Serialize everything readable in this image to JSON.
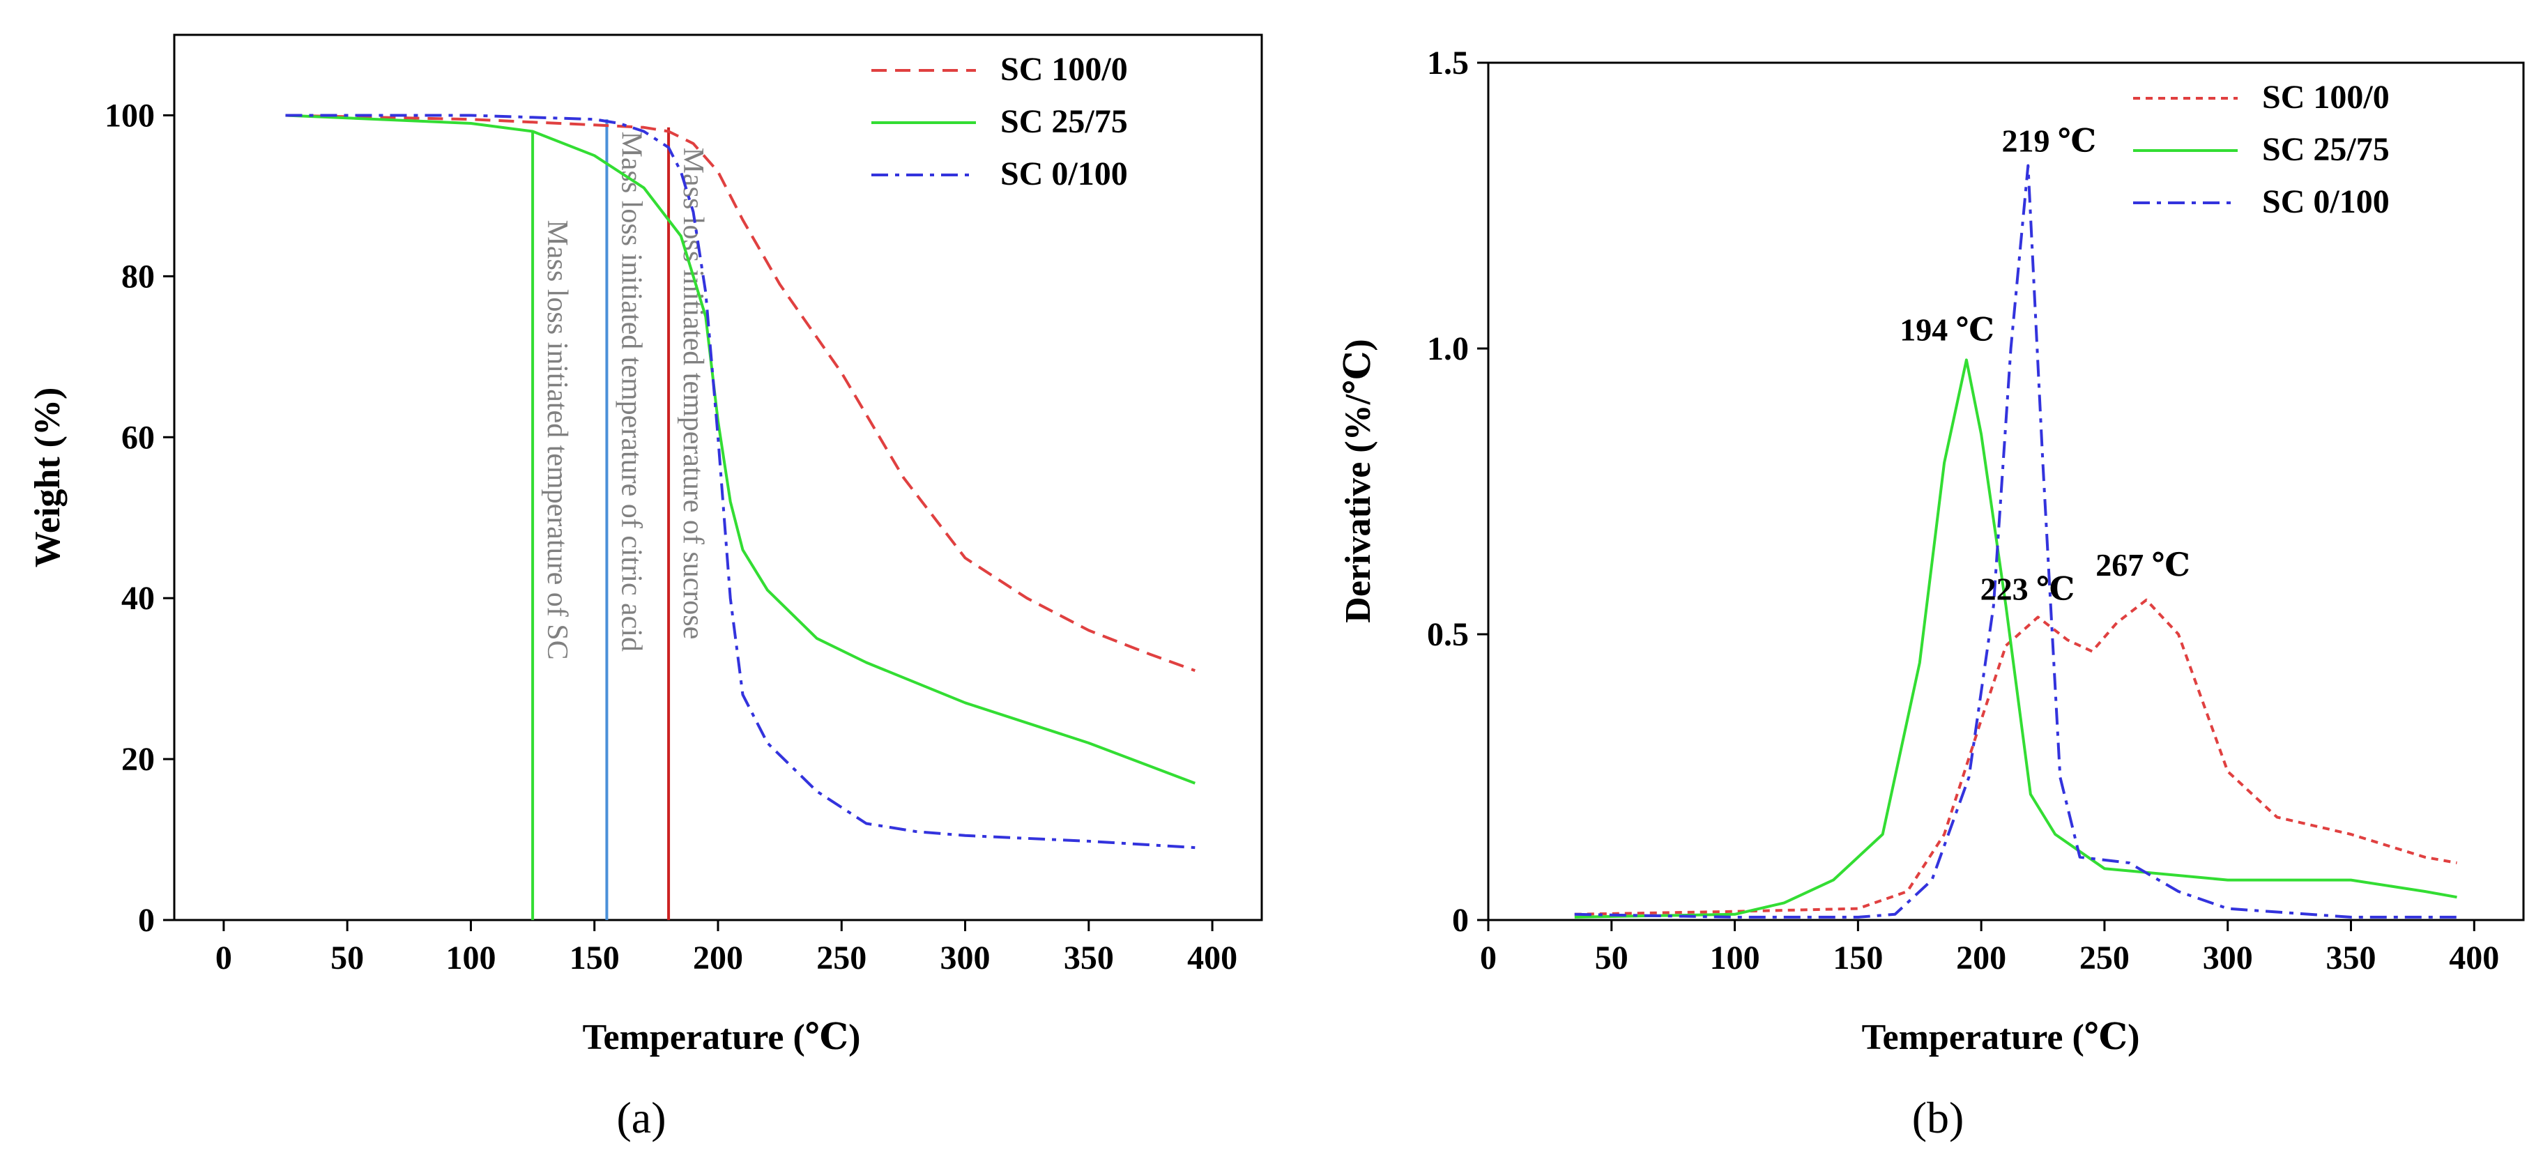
{
  "colors": {
    "sc100": "#e04040",
    "sc25": "#33dd33",
    "sc0": "#3333dd",
    "citric_line": "#4a90d9",
    "sucrose_line": "#cc2222",
    "sc_line": "#33dd33",
    "annotation_text": "#808080"
  },
  "chart_data": [
    {
      "type": "line",
      "panel_label": "(a)",
      "xlabel": "Temperature (℃)",
      "ylabel": "Weight (%)",
      "xlim": [
        -20,
        420
      ],
      "ylim": [
        0,
        110
      ],
      "xticks": [
        0,
        50,
        100,
        150,
        200,
        250,
        300,
        350,
        400
      ],
      "yticks": [
        0,
        20,
        40,
        60,
        80,
        100
      ],
      "legend_position": "top-right",
      "series": [
        {
          "name": "SC 100/0",
          "style": "dashed",
          "color_key": "sc100",
          "x": [
            25,
            100,
            150,
            170,
            180,
            190,
            200,
            210,
            225,
            250,
            275,
            300,
            325,
            350,
            375,
            393
          ],
          "y": [
            100,
            99.5,
            98.8,
            98.5,
            98,
            96.5,
            93,
            87,
            79,
            68,
            55,
            45,
            40,
            36,
            33,
            31
          ]
        },
        {
          "name": "SC 25/75",
          "style": "solid",
          "color_key": "sc25",
          "x": [
            25,
            100,
            125,
            150,
            170,
            185,
            195,
            200,
            205,
            210,
            220,
            240,
            260,
            300,
            350,
            393
          ],
          "y": [
            100,
            99,
            98,
            95,
            91,
            85,
            75,
            62,
            52,
            46,
            41,
            35,
            32,
            27,
            22,
            17
          ]
        },
        {
          "name": "SC 0/100",
          "style": "dashdot",
          "color_key": "sc0",
          "x": [
            25,
            100,
            150,
            160,
            170,
            180,
            185,
            190,
            195,
            200,
            205,
            210,
            220,
            240,
            260,
            280,
            300,
            350,
            393
          ],
          "y": [
            100,
            100,
            99.5,
            99,
            98,
            96,
            93,
            88,
            78,
            60,
            40,
            28,
            22,
            16,
            12,
            11,
            10.5,
            9.8,
            9
          ]
        }
      ],
      "vertical_markers": [
        {
          "x": 125,
          "color_key": "sc_line",
          "label": "Mass loss initiated temperature of SC"
        },
        {
          "x": 155,
          "color_key": "citric_line",
          "label": "Mass loss initiated temperature of citric acid"
        },
        {
          "x": 180,
          "color_key": "sucrose_line",
          "label": "Mass loss initiated temperature of sucrose"
        }
      ]
    },
    {
      "type": "line",
      "panel_label": "(b)",
      "xlabel": "Temperature (℃)",
      "ylabel": "Derivative (%/℃)",
      "xlim": [
        0,
        420
      ],
      "ylim": [
        0,
        1.5
      ],
      "xticks": [
        0,
        50,
        100,
        150,
        200,
        250,
        300,
        350,
        400
      ],
      "yticks": [
        0,
        0.5,
        1.0,
        1.5
      ],
      "ytick_labels": [
        "0",
        "0.5",
        "1.0",
        "1.5"
      ],
      "legend_position": "top-right",
      "series": [
        {
          "name": "SC 100/0",
          "style": "dotted",
          "color_key": "sc100",
          "x": [
            35,
            100,
            150,
            170,
            185,
            200,
            210,
            223,
            235,
            245,
            255,
            267,
            280,
            290,
            300,
            320,
            350,
            380,
            393
          ],
          "y": [
            0.01,
            0.015,
            0.02,
            0.05,
            0.15,
            0.35,
            0.48,
            0.53,
            0.49,
            0.47,
            0.52,
            0.56,
            0.5,
            0.38,
            0.26,
            0.18,
            0.15,
            0.11,
            0.1
          ]
        },
        {
          "name": "SC 25/75",
          "style": "solid",
          "color_key": "sc25",
          "x": [
            35,
            100,
            120,
            140,
            160,
            175,
            185,
            194,
            200,
            210,
            220,
            230,
            250,
            300,
            350,
            380,
            393
          ],
          "y": [
            0.005,
            0.01,
            0.03,
            0.07,
            0.15,
            0.45,
            0.8,
            0.98,
            0.85,
            0.55,
            0.22,
            0.15,
            0.09,
            0.07,
            0.07,
            0.05,
            0.04
          ]
        },
        {
          "name": "SC 0/100",
          "style": "dashdot",
          "color_key": "sc0",
          "x": [
            35,
            100,
            150,
            165,
            180,
            195,
            205,
            212,
            219,
            225,
            232,
            240,
            260,
            280,
            300,
            350,
            393
          ],
          "y": [
            0.01,
            0.005,
            0.005,
            0.01,
            0.07,
            0.25,
            0.55,
            1.0,
            1.32,
            0.8,
            0.25,
            0.11,
            0.1,
            0.05,
            0.02,
            0.005,
            0.005
          ]
        }
      ],
      "peak_labels": [
        {
          "text": "194 ℃",
          "x": 194,
          "y": 0.98
        },
        {
          "text": "219 ℃",
          "x": 219,
          "y": 1.32
        },
        {
          "text": "223 ℃",
          "x": 223,
          "y": 0.53
        },
        {
          "text": "267 ℃",
          "x": 267,
          "y": 0.56
        }
      ]
    }
  ]
}
